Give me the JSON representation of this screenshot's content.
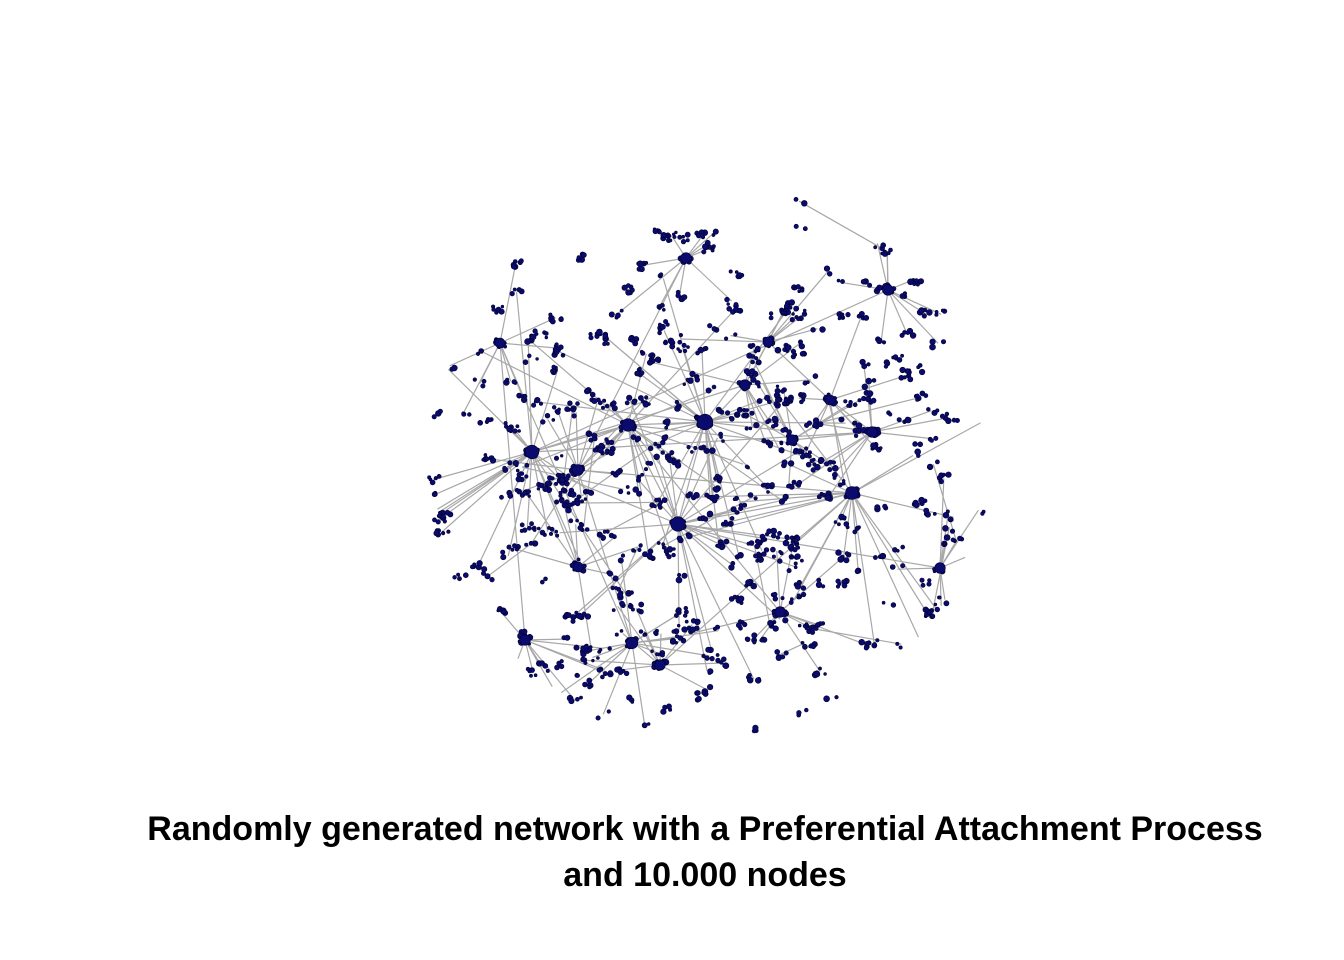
{
  "caption": {
    "line1": "Randomly generated network with a Preferential Attachment Process",
    "line2": "and 10.000 nodes"
  },
  "colors": {
    "node": "#0b0b6e",
    "node_outline": "#000033",
    "edge": "#a8a8a8",
    "background": "#ffffff"
  }
}
